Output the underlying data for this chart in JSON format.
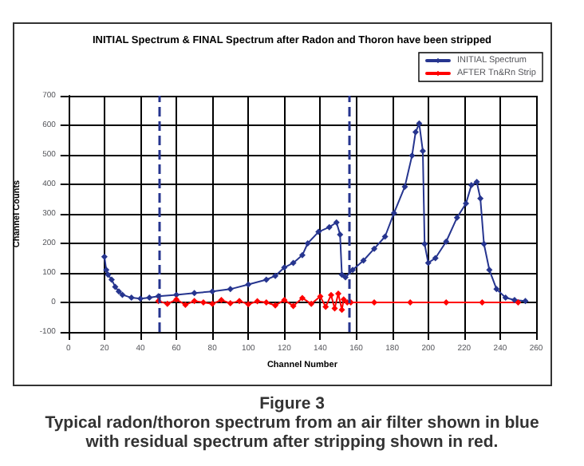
{
  "chart_data": {
    "type": "line",
    "title": "INITIAL Spectrum & FINAL Spectrum after Radon and Thoron have been stripped",
    "xlabel": "Channel Number",
    "ylabel": "Channel Counts",
    "xlim": [
      0,
      260
    ],
    "xticks": [
      0,
      20,
      40,
      60,
      80,
      100,
      120,
      140,
      160,
      180,
      200,
      220,
      240,
      260
    ],
    "ylim": [
      -100,
      700
    ],
    "yticks": [
      -100,
      0,
      100,
      200,
      300,
      400,
      500,
      600,
      700
    ],
    "grid": true,
    "legend": "top right",
    "marker": "diamond",
    "series": [
      {
        "name": "INITIAL Spectrum",
        "color": "#26358f",
        "x": [
          20,
          21,
          22,
          24,
          26,
          28,
          30,
          35,
          40,
          45,
          50,
          60,
          70,
          80,
          90,
          100,
          110,
          115,
          120,
          125,
          130,
          133,
          139,
          145,
          149,
          151,
          152,
          154,
          158,
          164,
          170,
          176,
          181,
          187,
          191,
          193,
          195,
          197,
          198,
          200,
          204,
          210,
          216,
          221,
          224,
          227,
          229,
          231,
          234,
          238,
          243,
          248,
          254
        ],
        "values": [
          155,
          110,
          94,
          77,
          53,
          37,
          26,
          16,
          13,
          16,
          21,
          26,
          32,
          37,
          45,
          61,
          77,
          90,
          118,
          134,
          160,
          200,
          239,
          255,
          271,
          230,
          94,
          85,
          110,
          142,
          182,
          223,
          303,
          392,
          497,
          577,
          606,
          513,
          198,
          134,
          150,
          206,
          287,
          335,
          397,
          408,
          352,
          198,
          110,
          45,
          16,
          8,
          5
        ]
      },
      {
        "name": "AFTER Tn&Rn Strip",
        "color": "#ff0000",
        "x": [
          50,
          55,
          60,
          65,
          70,
          75,
          80,
          85,
          90,
          95,
          100,
          105,
          110,
          115,
          120,
          125,
          130,
          135,
          140,
          143,
          146,
          148,
          150,
          152,
          153,
          155,
          157,
          170,
          190,
          210,
          230,
          250
        ],
        "values": [
          5,
          -5,
          10,
          -8,
          5,
          0,
          -5,
          8,
          -3,
          5,
          -6,
          4,
          0,
          -10,
          8,
          -12,
          15,
          -5,
          20,
          -15,
          25,
          -20,
          30,
          -25,
          10,
          0,
          0,
          0,
          0,
          0,
          0,
          0
        ]
      }
    ],
    "ref_lines": [
      {
        "axis": "x",
        "value": 50,
        "color": "#26358f",
        "line_style": "dashed"
      },
      {
        "axis": "x",
        "value": 156,
        "color": "#26358f",
        "line_style": "dashed"
      }
    ],
    "annotations": [
      "Figure 3",
      "Typical radon/thoron spectrum from an air filter shown in blue",
      "with residual spectrum after stripping shown in red."
    ]
  }
}
